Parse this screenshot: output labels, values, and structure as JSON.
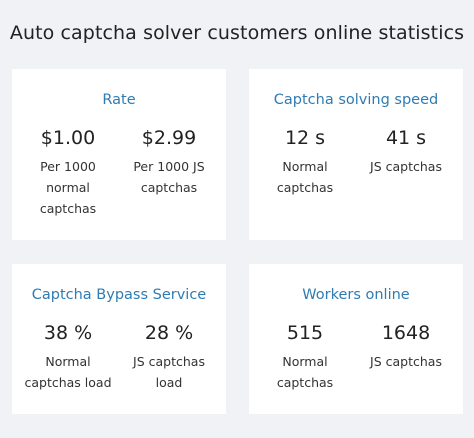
{
  "page": {
    "title": "Auto captcha solver customers online statistics"
  },
  "cards": [
    {
      "title": "Rate",
      "stats": [
        {
          "value": "$1.00",
          "label": "Per 1000 normal captchas"
        },
        {
          "value": "$2.99",
          "label": "Per 1000 JS captchas"
        }
      ]
    },
    {
      "title": "Captcha solving speed",
      "stats": [
        {
          "value": "12 s",
          "label": "Normal captchas"
        },
        {
          "value": "41 s",
          "label": "JS captchas"
        }
      ]
    },
    {
      "title": "Captcha Bypass Service",
      "stats": [
        {
          "value": "38 %",
          "label": "Normal captchas load"
        },
        {
          "value": "28 %",
          "label": "JS captchas load"
        }
      ]
    },
    {
      "title": "Workers online",
      "stats": [
        {
          "value": "515",
          "label": "Normal captchas"
        },
        {
          "value": "1648",
          "label": "JS captchas"
        }
      ]
    }
  ],
  "colors": {
    "background": "#f0f2f5",
    "card": "#ffffff",
    "accent": "#2e7cb3",
    "text": "#222222"
  }
}
